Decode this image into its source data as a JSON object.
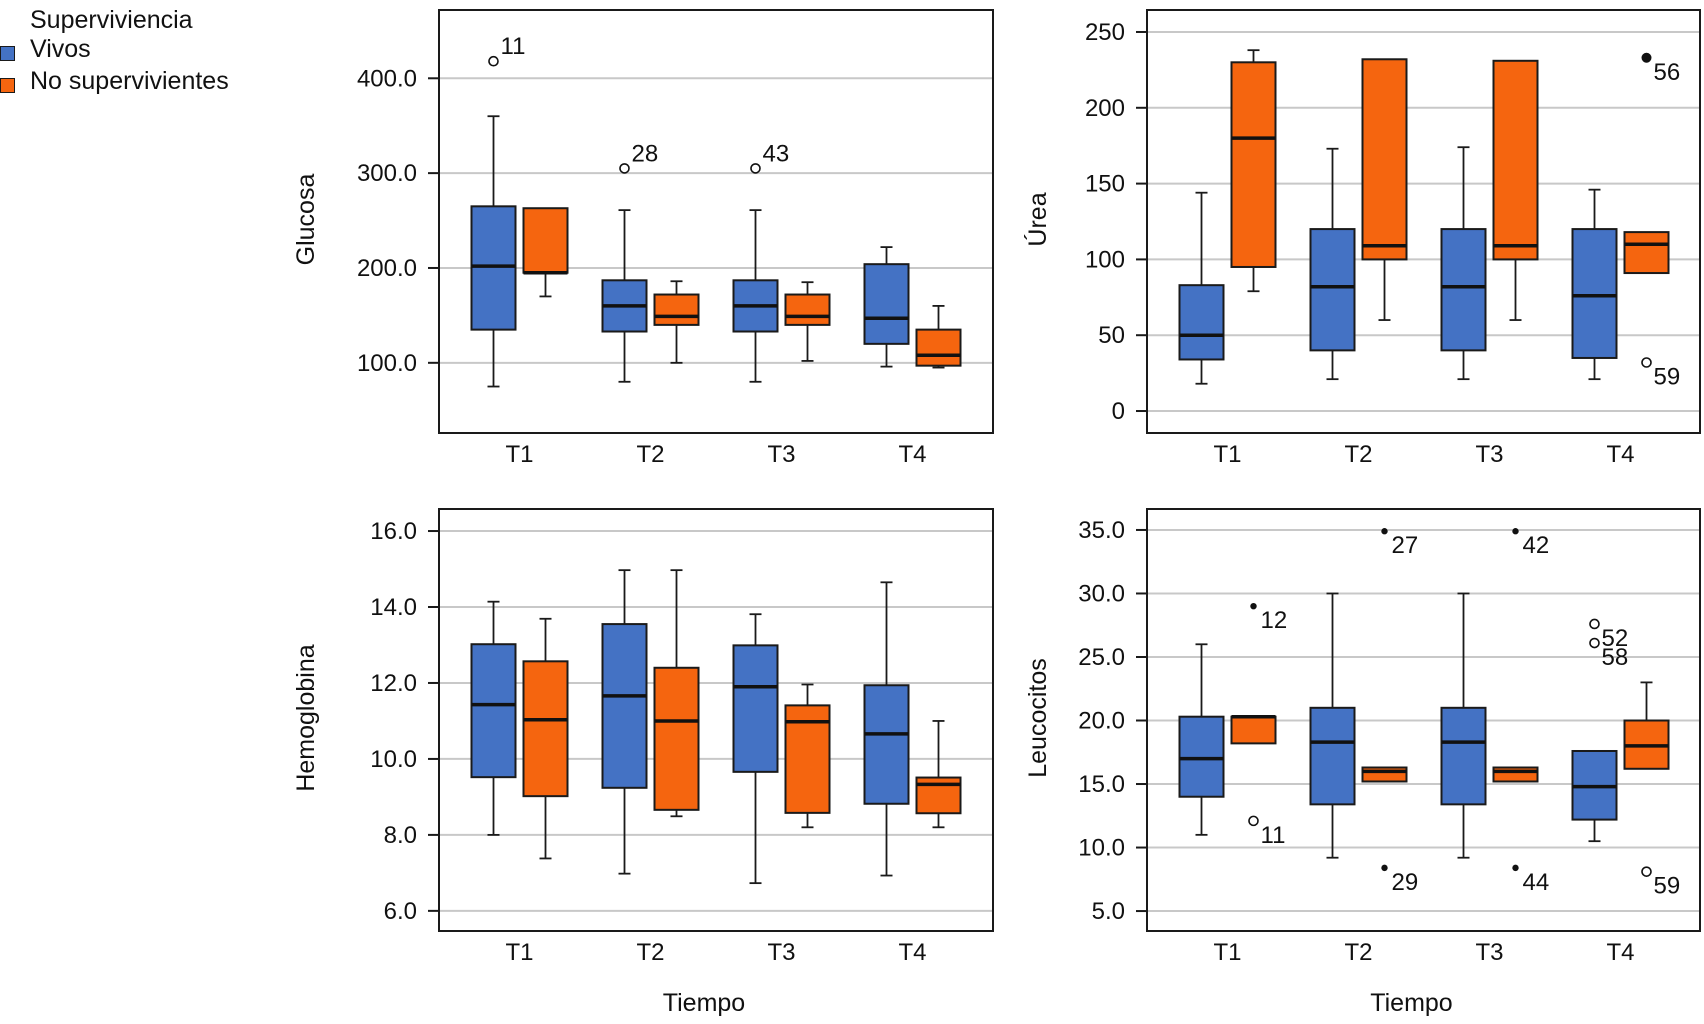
{
  "legend": {
    "title": "Superviviencia",
    "items": [
      {
        "label": "Vivos",
        "color": "#4472C4"
      },
      {
        "label": "No supervivientes",
        "color": "#F5650F"
      }
    ]
  },
  "chart_data": [
    {
      "id": "glucosa",
      "type": "boxplot",
      "position": "top-left",
      "ylabel": "Glucosa",
      "xlabel": "",
      "categories": [
        "T1",
        "T2",
        "T3",
        "T4"
      ],
      "yticks": [
        100,
        200,
        300,
        400
      ],
      "ytick_labels": [
        "100.0",
        "200.0",
        "300.0",
        "400.0"
      ],
      "ylim": [
        26,
        472
      ],
      "grid": true,
      "series": [
        {
          "name": "Vivos",
          "boxes": [
            {
              "whisker_low": 75,
              "q1": 135,
              "median": 202,
              "q3": 265,
              "whisker_high": 360
            },
            {
              "whisker_low": 80,
              "q1": 133,
              "median": 160,
              "q3": 187,
              "whisker_high": 261
            },
            {
              "whisker_low": 80,
              "q1": 133,
              "median": 160,
              "q3": 187,
              "whisker_high": 261
            },
            {
              "whisker_low": 96,
              "q1": 120,
              "median": 147,
              "q3": 204,
              "whisker_high": 222
            }
          ]
        },
        {
          "name": "No supervivientes",
          "boxes": [
            {
              "whisker_low": 170,
              "q1": 195,
              "median": 195,
              "q3": 263,
              "whisker_high": 263
            },
            {
              "whisker_low": 100,
              "q1": 140,
              "median": 149,
              "q3": 172,
              "whisker_high": 186
            },
            {
              "whisker_low": 102,
              "q1": 140,
              "median": 149,
              "q3": 172,
              "whisker_high": 185
            },
            {
              "whisker_low": 95,
              "q1": 97,
              "median": 108,
              "q3": 135,
              "whisker_high": 160
            }
          ]
        }
      ],
      "outliers": [
        {
          "category": "T1",
          "series": "Vivos",
          "value": 418,
          "label": "11",
          "kind": "outlier"
        },
        {
          "category": "T2",
          "series": "Vivos",
          "value": 305,
          "label": "28",
          "kind": "outlier"
        },
        {
          "category": "T3",
          "series": "Vivos",
          "value": 305,
          "label": "43",
          "kind": "outlier"
        }
      ]
    },
    {
      "id": "urea",
      "type": "boxplot",
      "position": "top-right",
      "ylabel": "Úrea",
      "xlabel": "",
      "categories": [
        "T1",
        "T2",
        "T3",
        "T4"
      ],
      "yticks": [
        0,
        50,
        100,
        150,
        200,
        250
      ],
      "ytick_labels": [
        "0",
        "50",
        "100",
        "150",
        "200",
        "250"
      ],
      "ylim": [
        -14.5,
        264.5
      ],
      "grid": true,
      "series": [
        {
          "name": "Vivos",
          "boxes": [
            {
              "whisker_low": 18,
              "q1": 34,
              "median": 50,
              "q3": 83,
              "whisker_high": 144
            },
            {
              "whisker_low": 21,
              "q1": 40,
              "median": 82,
              "q3": 120,
              "whisker_high": 173
            },
            {
              "whisker_low": 21,
              "q1": 40,
              "median": 82,
              "q3": 120,
              "whisker_high": 174
            },
            {
              "whisker_low": 21,
              "q1": 35,
              "median": 76,
              "q3": 120,
              "whisker_high": 146
            }
          ]
        },
        {
          "name": "No supervivientes",
          "boxes": [
            {
              "whisker_low": 79,
              "q1": 95,
              "median": 180,
              "q3": 230,
              "whisker_high": 238
            },
            {
              "whisker_low": 60,
              "q1": 100,
              "median": 109,
              "q3": 232,
              "whisker_high": 232
            },
            {
              "whisker_low": 60,
              "q1": 100,
              "median": 109,
              "q3": 231,
              "whisker_high": 231
            },
            {
              "whisker_low": 91,
              "q1": 91,
              "median": 110,
              "q3": 118,
              "whisker_high": 118
            }
          ]
        }
      ],
      "outliers": [
        {
          "category": "T4",
          "series": "No supervivientes",
          "value": 233,
          "label": "56",
          "kind": "extreme"
        },
        {
          "category": "T4",
          "series": "No supervivientes",
          "value": 32,
          "label": "59",
          "kind": "outlier"
        }
      ]
    },
    {
      "id": "hemoglobina",
      "type": "boxplot",
      "position": "bottom-left",
      "ylabel": "Hemoglobina",
      "xlabel": "Tiempo",
      "categories": [
        "T1",
        "T2",
        "T3",
        "T4"
      ],
      "yticks": [
        6,
        8,
        10,
        12,
        14,
        16
      ],
      "ytick_labels": [
        "6.0",
        "8.0",
        "10.0",
        "12.0",
        "14.0",
        "16.0"
      ],
      "ylim": [
        5.47,
        16.58
      ],
      "grid": true,
      "series": [
        {
          "name": "Vivos",
          "boxes": [
            {
              "whisker_low": 8.0,
              "q1": 9.52,
              "median": 11.43,
              "q3": 13.02,
              "whisker_high": 14.14
            },
            {
              "whisker_low": 6.98,
              "q1": 9.24,
              "median": 11.66,
              "q3": 13.55,
              "whisker_high": 14.97
            },
            {
              "whisker_low": 6.73,
              "q1": 9.66,
              "median": 11.9,
              "q3": 12.99,
              "whisker_high": 13.81
            },
            {
              "whisker_low": 6.93,
              "q1": 8.82,
              "median": 10.66,
              "q3": 11.94,
              "whisker_high": 14.65
            }
          ]
        },
        {
          "name": "No supervivientes",
          "boxes": [
            {
              "whisker_low": 7.38,
              "q1": 9.02,
              "median": 11.03,
              "q3": 12.57,
              "whisker_high": 13.69
            },
            {
              "whisker_low": 8.49,
              "q1": 8.66,
              "median": 11.0,
              "q3": 12.4,
              "whisker_high": 14.97
            },
            {
              "whisker_low": 8.2,
              "q1": 8.58,
              "median": 10.98,
              "q3": 11.41,
              "whisker_high": 11.96
            },
            {
              "whisker_low": 8.2,
              "q1": 8.57,
              "median": 9.33,
              "q3": 9.51,
              "whisker_high": 11.0
            }
          ]
        }
      ],
      "outliers": []
    },
    {
      "id": "leucocitos",
      "type": "boxplot",
      "position": "bottom-right",
      "ylabel": "Leucocitos",
      "xlabel": "Tiempo",
      "categories": [
        "T1",
        "T2",
        "T3",
        "T4"
      ],
      "yticks": [
        5,
        10,
        15,
        20,
        25,
        30,
        35
      ],
      "ytick_labels": [
        "5.0",
        "10.0",
        "15.0",
        "20.0",
        "25.0",
        "30.0",
        "35.0"
      ],
      "ylim": [
        3.43,
        36.65
      ],
      "grid": true,
      "series": [
        {
          "name": "Vivos",
          "boxes": [
            {
              "whisker_low": 11.0,
              "q1": 14.0,
              "median": 17.0,
              "q3": 20.3,
              "whisker_high": 26.0
            },
            {
              "whisker_low": 9.2,
              "q1": 13.4,
              "median": 18.3,
              "q3": 21.0,
              "whisker_high": 30.0
            },
            {
              "whisker_low": 9.2,
              "q1": 13.4,
              "median": 18.3,
              "q3": 21.0,
              "whisker_high": 30.0
            },
            {
              "whisker_low": 10.5,
              "q1": 12.2,
              "median": 14.8,
              "q3": 17.6,
              "whisker_high": 17.6
            }
          ]
        },
        {
          "name": "No supervivientes",
          "boxes": [
            {
              "whisker_low": 18.2,
              "q1": 18.2,
              "median": 20.3,
              "q3": 20.3,
              "whisker_high": 20.3
            },
            {
              "whisker_low": 15.2,
              "q1": 15.2,
              "median": 16.0,
              "q3": 16.3,
              "whisker_high": 16.3
            },
            {
              "whisker_low": 15.2,
              "q1": 15.2,
              "median": 16.0,
              "q3": 16.3,
              "whisker_high": 16.3
            },
            {
              "whisker_low": 16.2,
              "q1": 16.2,
              "median": 18.0,
              "q3": 20.0,
              "whisker_high": 23.0
            }
          ]
        }
      ],
      "outliers": [
        {
          "category": "T1",
          "series": "No supervivientes",
          "value": 29.0,
          "label": "12",
          "kind": "extreme"
        },
        {
          "category": "T1",
          "series": "No supervivientes",
          "value": 12.1,
          "label": "11",
          "kind": "outlier"
        },
        {
          "category": "T2",
          "series": "No supervivientes",
          "value": 34.9,
          "label": "27",
          "kind": "extreme"
        },
        {
          "category": "T2",
          "series": "No supervivientes",
          "value": 8.4,
          "label": "29",
          "kind": "extreme"
        },
        {
          "category": "T3",
          "series": "No supervivientes",
          "value": 34.9,
          "label": "42",
          "kind": "extreme"
        },
        {
          "category": "T3",
          "series": "No supervivientes",
          "value": 8.4,
          "label": "44",
          "kind": "extreme"
        },
        {
          "category": "T4",
          "series": "Vivos",
          "value": 27.6,
          "label": "52",
          "kind": "outlier"
        },
        {
          "category": "T4",
          "series": "Vivos",
          "value": 26.1,
          "label": "58",
          "kind": "outlier"
        },
        {
          "category": "T4",
          "series": "No supervivientes",
          "value": 8.1,
          "label": "59",
          "kind": "outlier"
        }
      ]
    }
  ]
}
